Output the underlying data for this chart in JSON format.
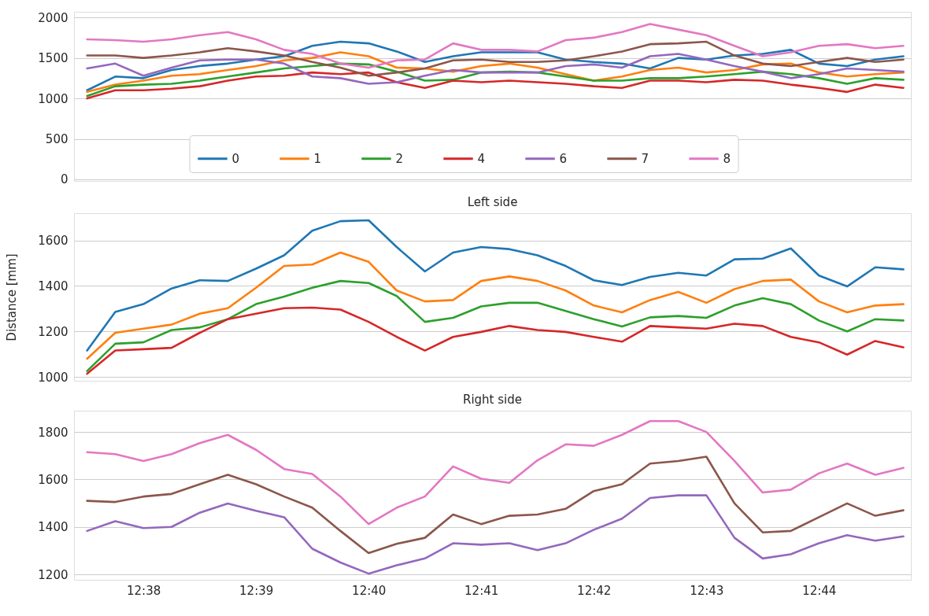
{
  "chart_data": [
    {
      "type": "line",
      "x": [
        12.625,
        12.62917,
        12.63333,
        12.6375,
        12.64167,
        12.64583,
        12.65,
        12.65417,
        12.65833,
        12.6625,
        12.66667,
        12.67083,
        12.675,
        12.67917,
        12.68333,
        12.6875,
        12.69167,
        12.69583,
        12.7,
        12.70417,
        12.70833,
        12.7125,
        12.71667,
        12.72083,
        12.725,
        12.72917,
        12.73333,
        12.7375,
        12.74167,
        12.74583
      ],
      "series": [
        {
          "name": "0",
          "color": "#1f77b4",
          "values": [
            1100,
            1270,
            1250,
            1350,
            1400,
            1430,
            1480,
            1520,
            1650,
            1700,
            1680,
            1580,
            1450,
            1520,
            1570,
            1570,
            1570,
            1480,
            1450,
            1430,
            1370,
            1500,
            1480,
            1530,
            1550,
            1600,
            1430,
            1400,
            1480,
            1520
          ]
        },
        {
          "name": "1",
          "color": "#ff7f0e",
          "values": [
            1080,
            1170,
            1220,
            1280,
            1300,
            1350,
            1400,
            1470,
            1500,
            1570,
            1520,
            1380,
            1370,
            1330,
            1400,
            1430,
            1380,
            1300,
            1220,
            1270,
            1350,
            1380,
            1320,
            1350,
            1420,
            1430,
            1320,
            1270,
            1300,
            1320
          ]
        },
        {
          "name": "2",
          "color": "#2ca02c",
          "values": [
            1030,
            1150,
            1170,
            1180,
            1220,
            1270,
            1320,
            1370,
            1400,
            1430,
            1420,
            1330,
            1220,
            1230,
            1320,
            1330,
            1320,
            1270,
            1220,
            1220,
            1250,
            1250,
            1270,
            1300,
            1330,
            1300,
            1250,
            1180,
            1250,
            1230
          ]
        },
        {
          "name": "4",
          "color": "#d62728",
          "values": [
            1000,
            1100,
            1100,
            1120,
            1150,
            1220,
            1270,
            1280,
            1320,
            1300,
            1320,
            1200,
            1130,
            1220,
            1200,
            1220,
            1200,
            1180,
            1150,
            1130,
            1220,
            1220,
            1200,
            1230,
            1220,
            1170,
            1130,
            1080,
            1170,
            1130
          ]
        },
        {
          "name": "6",
          "color": "#9467bd",
          "values": [
            1370,
            1430,
            1280,
            1380,
            1470,
            1480,
            1480,
            1430,
            1270,
            1250,
            1180,
            1200,
            1280,
            1350,
            1320,
            1320,
            1320,
            1400,
            1420,
            1380,
            1520,
            1550,
            1480,
            1400,
            1330,
            1250,
            1300,
            1370,
            1350,
            1330
          ]
        },
        {
          "name": "7",
          "color": "#8c564b",
          "values": [
            1530,
            1530,
            1500,
            1530,
            1570,
            1620,
            1580,
            1530,
            1450,
            1380,
            1280,
            1320,
            1370,
            1470,
            1480,
            1450,
            1450,
            1470,
            1520,
            1580,
            1670,
            1680,
            1700,
            1530,
            1430,
            1400,
            1450,
            1500,
            1450,
            1480
          ]
        },
        {
          "name": "8",
          "color": "#e377c2",
          "values": [
            1730,
            1720,
            1700,
            1730,
            1780,
            1820,
            1730,
            1600,
            1550,
            1430,
            1380,
            1470,
            1480,
            1680,
            1600,
            1600,
            1580,
            1720,
            1750,
            1820,
            1920,
            1850,
            1780,
            1650,
            1520,
            1570,
            1650,
            1670,
            1620,
            1650
          ]
        }
      ],
      "xlim": [
        12.62306,
        12.74694
      ],
      "ylim": [
        -20,
        2070
      ],
      "yticks": [
        0,
        500,
        1000,
        1500,
        2000
      ],
      "grid": "y",
      "legend": "bottom",
      "tick_labels": "y",
      "line_style": "solid"
    },
    {
      "type": "line",
      "title": "Left side",
      "ylabel": "Distance [mm]",
      "x": [
        12.625,
        12.62917,
        12.63333,
        12.6375,
        12.64167,
        12.64583,
        12.65,
        12.65417,
        12.65833,
        12.6625,
        12.66667,
        12.67083,
        12.675,
        12.67917,
        12.68333,
        12.6875,
        12.69167,
        12.69583,
        12.7,
        12.70417,
        12.70833,
        12.7125,
        12.71667,
        12.72083,
        12.725,
        12.72917,
        12.73333,
        12.7375,
        12.74167,
        12.74583
      ],
      "series": [
        {
          "color": "#1f77b4",
          "values": [
            1116,
            1286,
            1320,
            1389,
            1425,
            1422,
            1476,
            1535,
            1643,
            1685,
            1689,
            1571,
            1464,
            1547,
            1571,
            1562,
            1535,
            1488,
            1425,
            1404,
            1440,
            1458,
            1446,
            1517,
            1520,
            1565,
            1446,
            1398,
            1482,
            1473
          ]
        },
        {
          "color": "#ff7f0e",
          "values": [
            1080,
            1194,
            1212,
            1230,
            1278,
            1302,
            1392,
            1488,
            1494,
            1547,
            1506,
            1380,
            1332,
            1338,
            1422,
            1442,
            1422,
            1380,
            1314,
            1284,
            1338,
            1374,
            1326,
            1386,
            1422,
            1428,
            1332,
            1284,
            1314,
            1320
          ]
        },
        {
          "color": "#2ca02c",
          "values": [
            1026,
            1146,
            1152,
            1206,
            1218,
            1254,
            1320,
            1353,
            1392,
            1422,
            1413,
            1356,
            1242,
            1260,
            1310,
            1326,
            1326,
            1290,
            1254,
            1222,
            1262,
            1268,
            1260,
            1314,
            1346,
            1320,
            1248,
            1200,
            1254,
            1248
          ]
        },
        {
          "color": "#d62728",
          "values": [
            1014,
            1116,
            1122,
            1128,
            1194,
            1254,
            1278,
            1302,
            1305,
            1296,
            1242,
            1176,
            1116,
            1176,
            1198,
            1224,
            1206,
            1198,
            1176,
            1155,
            1224,
            1218,
            1212,
            1234,
            1224,
            1176,
            1152,
            1098,
            1158,
            1130
          ]
        }
      ],
      "xlim": [
        12.62306,
        12.74694
      ],
      "ylim": [
        983,
        1720
      ],
      "yticks": [
        1000,
        1200,
        1400,
        1600
      ],
      "grid": "y",
      "tick_labels": "y",
      "line_style": "solid"
    },
    {
      "type": "line",
      "title": "Right side",
      "x": [
        12.625,
        12.62917,
        12.63333,
        12.6375,
        12.64167,
        12.64583,
        12.65,
        12.65417,
        12.65833,
        12.6625,
        12.66667,
        12.67083,
        12.675,
        12.67917,
        12.68333,
        12.6875,
        12.69167,
        12.69583,
        12.7,
        12.70417,
        12.70833,
        12.7125,
        12.71667,
        12.72083,
        12.725,
        12.72917,
        12.73333,
        12.7375,
        12.74167,
        12.74583
      ],
      "series": [
        {
          "color": "#9467bd",
          "values": [
            1383,
            1424,
            1395,
            1400,
            1460,
            1499,
            1468,
            1441,
            1308,
            1250,
            1203,
            1238,
            1267,
            1331,
            1325,
            1331,
            1302,
            1331,
            1388,
            1435,
            1522,
            1533,
            1533,
            1354,
            1267,
            1285,
            1331,
            1365,
            1342,
            1360
          ]
        },
        {
          "color": "#8c564b",
          "values": [
            1510,
            1505,
            1528,
            1539,
            1580,
            1620,
            1580,
            1528,
            1481,
            1383,
            1290,
            1329,
            1354,
            1452,
            1412,
            1447,
            1452,
            1476,
            1551,
            1580,
            1667,
            1678,
            1696,
            1499,
            1377,
            1383,
            1441,
            1499,
            1447,
            1470
          ]
        },
        {
          "color": "#e377c2",
          "values": [
            1715,
            1707,
            1678,
            1707,
            1753,
            1788,
            1725,
            1644,
            1623,
            1528,
            1412,
            1481,
            1528,
            1655,
            1603,
            1586,
            1681,
            1748,
            1742,
            1788,
            1846,
            1846,
            1800,
            1678,
            1545,
            1557,
            1626,
            1667,
            1620,
            1649
          ]
        }
      ],
      "xlim": [
        12.62306,
        12.74694
      ],
      "xticks": [
        {
          "value": 12.63333,
          "label": "12:38"
        },
        {
          "value": 12.65,
          "label": "12:39"
        },
        {
          "value": 12.66667,
          "label": "12:40"
        },
        {
          "value": 12.68333,
          "label": "12:41"
        },
        {
          "value": 12.7,
          "label": "12:42"
        },
        {
          "value": 12.71667,
          "label": "12:43"
        },
        {
          "value": 12.73333,
          "label": "12:44"
        }
      ],
      "ylim": [
        1177,
        1890
      ],
      "yticks": [
        1200,
        1400,
        1600,
        1800
      ],
      "grid": "y",
      "line_style": "solid"
    }
  ]
}
